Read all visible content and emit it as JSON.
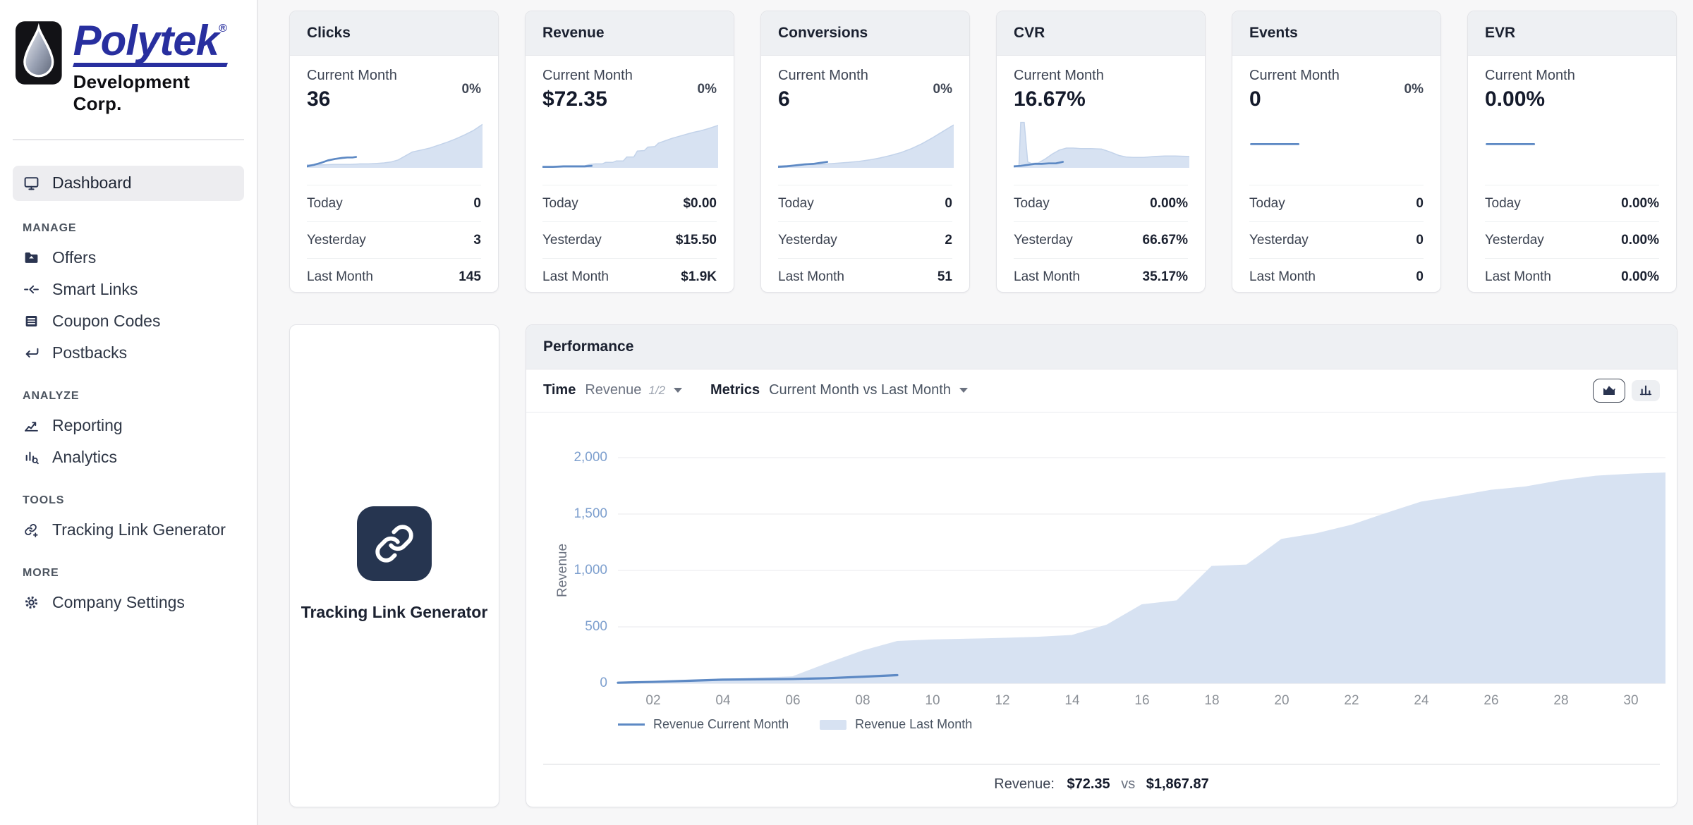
{
  "sidebar": {
    "logo": {
      "brand": "Polytek",
      "registered": "®",
      "subtitle": "Development Corp."
    },
    "active_item": {
      "label": "Dashboard"
    },
    "sections": [
      {
        "title": "MANAGE",
        "items": [
          {
            "label": "Offers"
          },
          {
            "label": "Smart Links"
          },
          {
            "label": "Coupon Codes"
          },
          {
            "label": "Postbacks"
          }
        ]
      },
      {
        "title": "ANALYZE",
        "items": [
          {
            "label": "Reporting"
          },
          {
            "label": "Analytics"
          }
        ]
      },
      {
        "title": "TOOLS",
        "items": [
          {
            "label": "Tracking Link Generator"
          }
        ]
      },
      {
        "title": "MORE",
        "items": [
          {
            "label": "Company Settings"
          }
        ]
      }
    ]
  },
  "stat_cards": [
    {
      "title": "Clicks",
      "period_label": "Current Month",
      "value": "36",
      "badge": "0%",
      "rows": [
        {
          "label": "Today",
          "value": "0"
        },
        {
          "label": "Yesterday",
          "value": "3"
        },
        {
          "label": "Last Month",
          "value": "145"
        }
      ],
      "spark": {
        "area_x": [
          0,
          5,
          10,
          15,
          20,
          25,
          30,
          35,
          40,
          44,
          48,
          52,
          56,
          60,
          65,
          70,
          75,
          80,
          85,
          90,
          95,
          100
        ],
        "area_y": [
          6,
          6,
          6,
          7,
          7,
          7,
          8,
          8,
          9,
          10,
          12,
          16,
          24,
          32,
          36,
          40,
          46,
          52,
          59,
          67,
          76,
          88
        ],
        "line_x": [
          0,
          4,
          8,
          12,
          16,
          20,
          23,
          26,
          28
        ],
        "line_y": [
          3,
          6,
          10,
          15,
          18,
          20,
          21,
          21,
          22
        ]
      }
    },
    {
      "title": "Revenue",
      "period_label": "Current Month",
      "value": "$72.35",
      "badge": "0%",
      "rows": [
        {
          "label": "Today",
          "value": "$0.00"
        },
        {
          "label": "Yesterday",
          "value": "$15.50"
        },
        {
          "label": "Last Month",
          "value": "$1.9K"
        }
      ],
      "spark": {
        "area_x": [
          0,
          6,
          12,
          18,
          24,
          27,
          30,
          34,
          36,
          40,
          42,
          46,
          48,
          52,
          54,
          58,
          60,
          64,
          66,
          70,
          74,
          78,
          82,
          86,
          90,
          94,
          100
        ],
        "area_y": [
          2,
          2,
          3,
          3,
          4,
          7,
          8,
          8,
          11,
          11,
          14,
          14,
          22,
          22,
          34,
          35,
          42,
          43,
          50,
          55,
          60,
          64,
          68,
          72,
          75,
          79,
          86
        ],
        "line_x": [
          0,
          6,
          12,
          18,
          24,
          28
        ],
        "line_y": [
          2,
          2,
          3,
          3,
          3,
          4
        ]
      }
    },
    {
      "title": "Conversions",
      "period_label": "Current Month",
      "value": "6",
      "badge": "0%",
      "rows": [
        {
          "label": "Today",
          "value": "0"
        },
        {
          "label": "Yesterday",
          "value": "2"
        },
        {
          "label": "Last Month",
          "value": "51"
        }
      ],
      "spark": {
        "area_x": [
          0,
          8,
          16,
          24,
          32,
          40,
          46,
          52,
          58,
          64,
          70,
          76,
          82,
          88,
          94,
          100
        ],
        "area_y": [
          4,
          5,
          6,
          7,
          9,
          11,
          13,
          16,
          20,
          25,
          31,
          39,
          49,
          61,
          74,
          87
        ],
        "line_x": [
          0,
          5,
          10,
          15,
          20,
          24,
          28
        ],
        "line_y": [
          2,
          3,
          5,
          7,
          8,
          10,
          12
        ]
      }
    },
    {
      "title": "CVR",
      "period_label": "Current Month",
      "value": "16.67%",
      "badge": "",
      "rows": [
        {
          "label": "Today",
          "value": "0.00%"
        },
        {
          "label": "Yesterday",
          "value": "66.67%"
        },
        {
          "label": "Last Month",
          "value": "35.17%"
        }
      ],
      "spark": {
        "area_x": [
          0,
          3,
          4,
          6,
          8,
          10,
          14,
          18,
          22,
          26,
          30,
          34,
          38,
          44,
          50,
          55,
          60,
          64,
          68,
          74,
          80,
          86,
          92,
          100
        ],
        "area_y": [
          4,
          4,
          92,
          92,
          12,
          9,
          10,
          18,
          28,
          36,
          40,
          40,
          39,
          39,
          38,
          32,
          25,
          22,
          21,
          21,
          23,
          24,
          24,
          23
        ],
        "line_x": [
          0,
          4,
          8,
          12,
          16,
          20,
          24,
          28
        ],
        "line_y": [
          3,
          4,
          6,
          8,
          8,
          9,
          9,
          12
        ]
      }
    },
    {
      "title": "Events",
      "period_label": "Current Month",
      "value": "0",
      "badge": "0%",
      "rows": [
        {
          "label": "Today",
          "value": "0"
        },
        {
          "label": "Yesterday",
          "value": "0"
        },
        {
          "label": "Last Month",
          "value": "0"
        }
      ],
      "spark": {
        "area_x": [],
        "area_y": [],
        "line_x": [
          1,
          28
        ],
        "line_y": [
          48,
          48
        ]
      }
    },
    {
      "title": "EVR",
      "period_label": "Current Month",
      "value": "0.00%",
      "badge": "",
      "rows": [
        {
          "label": "Today",
          "value": "0.00%"
        },
        {
          "label": "Yesterday",
          "value": "0.00%"
        },
        {
          "label": "Last Month",
          "value": "0.00%"
        }
      ],
      "spark": {
        "area_x": [],
        "area_y": [],
        "line_x": [
          1,
          28
        ],
        "line_y": [
          48,
          48
        ]
      }
    }
  ],
  "tools_card": {
    "label": "Tracking Link Generator"
  },
  "performance": {
    "title": "Performance",
    "controls": {
      "time_label": "Time",
      "time_value": "Revenue",
      "time_page": "1/2",
      "metrics_label": "Metrics",
      "metrics_value": "Current Month vs Last Month"
    },
    "legend": [
      {
        "label": "Revenue Current Month",
        "type": "line"
      },
      {
        "label": "Revenue Last Month",
        "type": "area"
      }
    ],
    "summary": {
      "label": "Revenue:",
      "current": "$72.35",
      "vs": "vs",
      "last": "$1,867.87"
    }
  },
  "chart_data": {
    "type": "area",
    "title": "Performance",
    "xlabel": "",
    "ylabel": "Revenue",
    "ylim": [
      0,
      2000
    ],
    "yticks": [
      "0",
      "500",
      "1,000",
      "1,500",
      "2,000"
    ],
    "xticks": [
      "02",
      "04",
      "06",
      "08",
      "10",
      "12",
      "14",
      "16",
      "18",
      "20",
      "22",
      "24",
      "26",
      "28",
      "30"
    ],
    "x_days": [
      1,
      2,
      3,
      4,
      5,
      6,
      7,
      8,
      9,
      10,
      11,
      12,
      13,
      14,
      15,
      16,
      17,
      18,
      19,
      20,
      21,
      22,
      23,
      24,
      25,
      26,
      27,
      28,
      29,
      30,
      31
    ],
    "legend_position": "bottom-left",
    "grid": true,
    "series": [
      {
        "name": "Revenue Current Month",
        "style": "line",
        "color": "#5d89c4",
        "values": [
          5,
          12,
          22,
          32,
          35,
          38,
          45,
          58,
          72
        ]
      },
      {
        "name": "Revenue Last Month",
        "style": "area",
        "color": "#d7e2f2",
        "values": [
          8,
          15,
          25,
          38,
          50,
          62,
          180,
          290,
          375,
          388,
          395,
          402,
          412,
          428,
          520,
          700,
          735,
          1040,
          1052,
          1280,
          1330,
          1405,
          1510,
          1610,
          1660,
          1715,
          1745,
          1800,
          1840,
          1858,
          1868
        ]
      }
    ],
    "footer_comparison": {
      "metric": "Revenue",
      "current_month": 72.35,
      "last_month": 1867.87
    }
  }
}
